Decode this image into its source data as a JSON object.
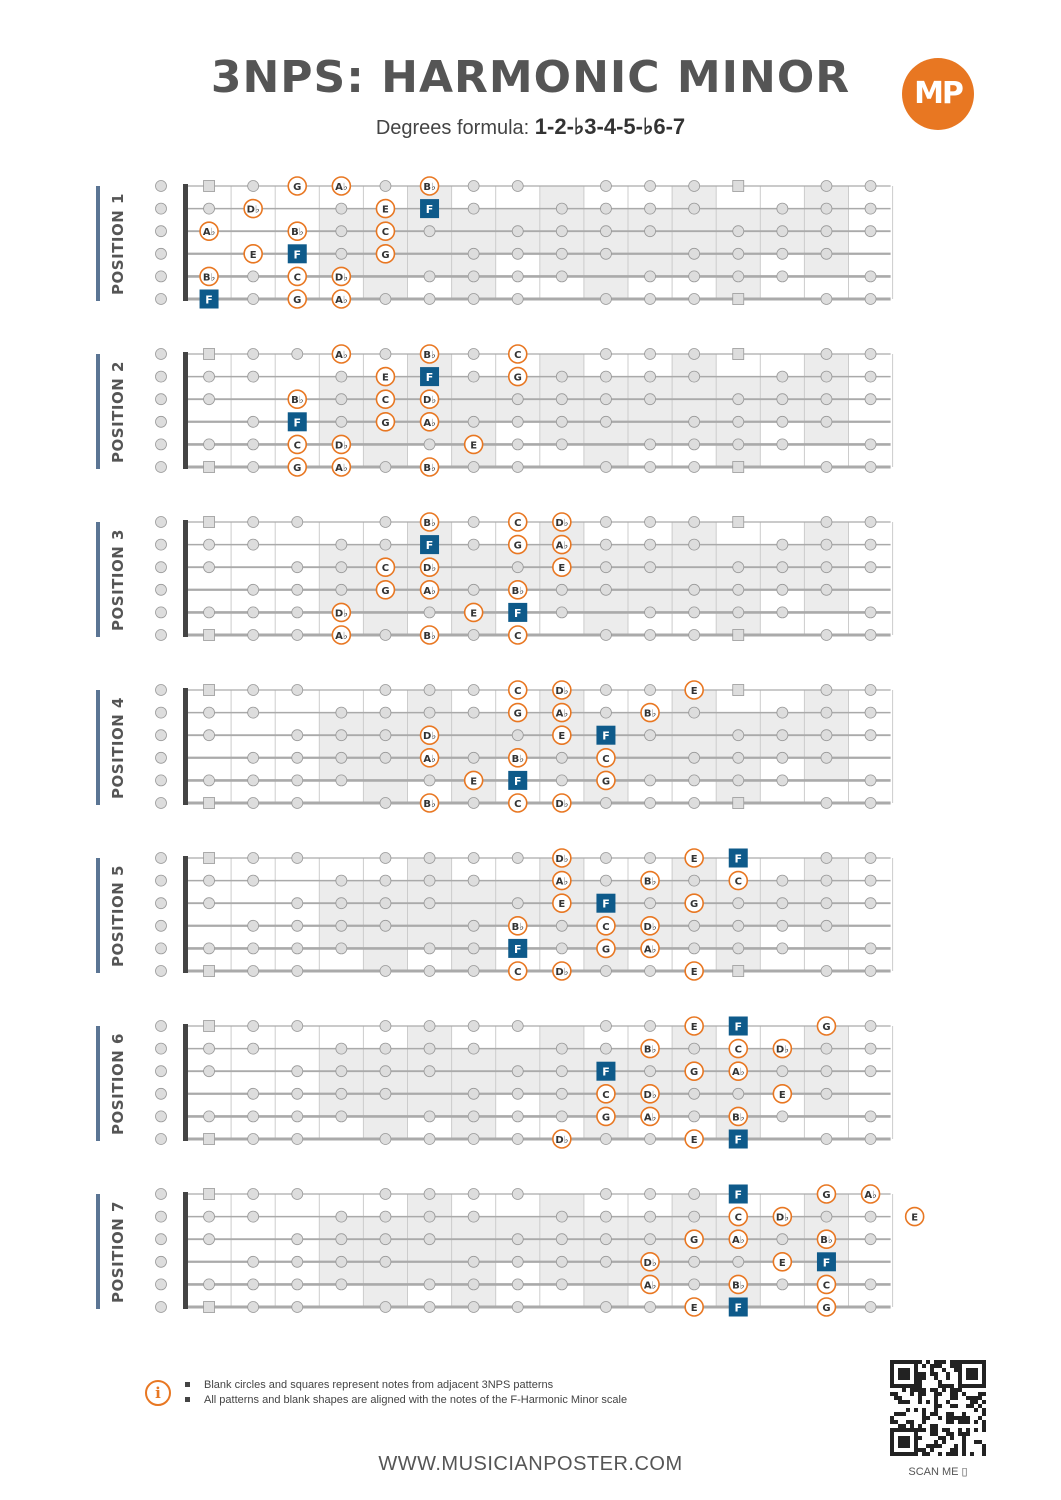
{
  "header": {
    "title": "3NPS: HARMONIC MINOR",
    "subtitle_prefix": "Degrees formula: ",
    "formula": "1-2-♭3-4-5-♭6-7",
    "logo_text": "MP"
  },
  "colors": {
    "accent": "#e87722",
    "root": "#0e5a8a",
    "gray_marker": "#dddddd",
    "label_bar": "#5b7594",
    "text": "#555555"
  },
  "fretboard": {
    "strings_top_to_bottom": [
      "E",
      "B",
      "G",
      "D",
      "A",
      "E"
    ],
    "frets": 16,
    "shaded_string_bands": {
      "4": [
        1,
        4
      ],
      "5": [
        1,
        5
      ],
      "6": [
        0,
        4
      ],
      "7": [
        1,
        5
      ],
      "8": [
        1,
        3
      ],
      "9": [
        0,
        4
      ],
      "10": [
        1,
        5
      ],
      "11": [
        1,
        4
      ],
      "12": [
        0,
        4
      ],
      "13": [
        1,
        5
      ],
      "14": [
        1,
        3
      ],
      "15": [
        0,
        4
      ]
    },
    "blank_square_frets": [
      0,
      1,
      5,
      6,
      7,
      8,
      9,
      10,
      11,
      13
    ]
  },
  "positions": [
    {
      "label": "POSITION 1",
      "notes": [
        {
          "string": 0,
          "fret": 3,
          "note": "G"
        },
        {
          "string": 0,
          "fret": 4,
          "note": "Ab"
        },
        {
          "string": 0,
          "fret": 6,
          "note": "Bb"
        },
        {
          "string": 1,
          "fret": 2,
          "note": "Db"
        },
        {
          "string": 1,
          "fret": 5,
          "note": "E"
        },
        {
          "string": 1,
          "fret": 6,
          "note": "F",
          "root": true
        },
        {
          "string": 2,
          "fret": 1,
          "note": "Ab"
        },
        {
          "string": 2,
          "fret": 3,
          "note": "Bb"
        },
        {
          "string": 2,
          "fret": 5,
          "note": "C"
        },
        {
          "string": 3,
          "fret": 2,
          "note": "E"
        },
        {
          "string": 3,
          "fret": 3,
          "note": "F",
          "root": true
        },
        {
          "string": 3,
          "fret": 5,
          "note": "G"
        },
        {
          "string": 4,
          "fret": 1,
          "note": "Bb"
        },
        {
          "string": 4,
          "fret": 3,
          "note": "C"
        },
        {
          "string": 4,
          "fret": 4,
          "note": "Db"
        },
        {
          "string": 5,
          "fret": 1,
          "note": "F",
          "root": true
        },
        {
          "string": 5,
          "fret": 3,
          "note": "G"
        },
        {
          "string": 5,
          "fret": 4,
          "note": "Ab"
        }
      ]
    },
    {
      "label": "POSITION 2",
      "notes": [
        {
          "string": 0,
          "fret": 4,
          "note": "Ab"
        },
        {
          "string": 0,
          "fret": 6,
          "note": "Bb"
        },
        {
          "string": 0,
          "fret": 8,
          "note": "C"
        },
        {
          "string": 1,
          "fret": 5,
          "note": "E"
        },
        {
          "string": 1,
          "fret": 6,
          "note": "F",
          "root": true
        },
        {
          "string": 1,
          "fret": 8,
          "note": "G"
        },
        {
          "string": 2,
          "fret": 3,
          "note": "Bb"
        },
        {
          "string": 2,
          "fret": 5,
          "note": "C"
        },
        {
          "string": 2,
          "fret": 6,
          "note": "Db"
        },
        {
          "string": 3,
          "fret": 3,
          "note": "F",
          "root": true
        },
        {
          "string": 3,
          "fret": 5,
          "note": "G"
        },
        {
          "string": 3,
          "fret": 6,
          "note": "Ab"
        },
        {
          "string": 4,
          "fret": 3,
          "note": "C"
        },
        {
          "string": 4,
          "fret": 4,
          "note": "Db"
        },
        {
          "string": 4,
          "fret": 7,
          "note": "E"
        },
        {
          "string": 5,
          "fret": 3,
          "note": "G"
        },
        {
          "string": 5,
          "fret": 4,
          "note": "Ab"
        },
        {
          "string": 5,
          "fret": 6,
          "note": "Bb"
        }
      ]
    },
    {
      "label": "POSITION 3",
      "notes": [
        {
          "string": 0,
          "fret": 6,
          "note": "Bb"
        },
        {
          "string": 0,
          "fret": 8,
          "note": "C"
        },
        {
          "string": 0,
          "fret": 9,
          "note": "Db"
        },
        {
          "string": 1,
          "fret": 6,
          "note": "F",
          "root": true
        },
        {
          "string": 1,
          "fret": 8,
          "note": "G"
        },
        {
          "string": 1,
          "fret": 9,
          "note": "Ab"
        },
        {
          "string": 2,
          "fret": 5,
          "note": "C"
        },
        {
          "string": 2,
          "fret": 6,
          "note": "Db"
        },
        {
          "string": 2,
          "fret": 9,
          "note": "E"
        },
        {
          "string": 3,
          "fret": 5,
          "note": "G"
        },
        {
          "string": 3,
          "fret": 6,
          "note": "Ab"
        },
        {
          "string": 3,
          "fret": 8,
          "note": "Bb"
        },
        {
          "string": 4,
          "fret": 4,
          "note": "Db"
        },
        {
          "string": 4,
          "fret": 7,
          "note": "E"
        },
        {
          "string": 4,
          "fret": 8,
          "note": "F",
          "root": true
        },
        {
          "string": 5,
          "fret": 4,
          "note": "Ab"
        },
        {
          "string": 5,
          "fret": 6,
          "note": "Bb"
        },
        {
          "string": 5,
          "fret": 8,
          "note": "C"
        }
      ]
    },
    {
      "label": "POSITION 4",
      "notes": [
        {
          "string": 0,
          "fret": 8,
          "note": "C"
        },
        {
          "string": 0,
          "fret": 9,
          "note": "Db"
        },
        {
          "string": 0,
          "fret": 12,
          "note": "E"
        },
        {
          "string": 1,
          "fret": 8,
          "note": "G"
        },
        {
          "string": 1,
          "fret": 9,
          "note": "Ab"
        },
        {
          "string": 1,
          "fret": 11,
          "note": "Bb"
        },
        {
          "string": 2,
          "fret": 6,
          "note": "Db"
        },
        {
          "string": 2,
          "fret": 9,
          "note": "E"
        },
        {
          "string": 2,
          "fret": 10,
          "note": "F",
          "root": true
        },
        {
          "string": 3,
          "fret": 6,
          "note": "Ab"
        },
        {
          "string": 3,
          "fret": 8,
          "note": "Bb"
        },
        {
          "string": 3,
          "fret": 10,
          "note": "C"
        },
        {
          "string": 4,
          "fret": 7,
          "note": "E"
        },
        {
          "string": 4,
          "fret": 8,
          "note": "F",
          "root": true
        },
        {
          "string": 4,
          "fret": 10,
          "note": "G"
        },
        {
          "string": 5,
          "fret": 6,
          "note": "Bb"
        },
        {
          "string": 5,
          "fret": 8,
          "note": "C"
        },
        {
          "string": 5,
          "fret": 9,
          "note": "Db"
        }
      ]
    },
    {
      "label": "POSITION 5",
      "notes": [
        {
          "string": 0,
          "fret": 9,
          "note": "Db"
        },
        {
          "string": 0,
          "fret": 12,
          "note": "E"
        },
        {
          "string": 0,
          "fret": 13,
          "note": "F",
          "root": true
        },
        {
          "string": 1,
          "fret": 9,
          "note": "Ab"
        },
        {
          "string": 1,
          "fret": 11,
          "note": "Bb"
        },
        {
          "string": 1,
          "fret": 13,
          "note": "C"
        },
        {
          "string": 2,
          "fret": 9,
          "note": "E"
        },
        {
          "string": 2,
          "fret": 10,
          "note": "F",
          "root": true
        },
        {
          "string": 2,
          "fret": 12,
          "note": "G"
        },
        {
          "string": 3,
          "fret": 8,
          "note": "Bb"
        },
        {
          "string": 3,
          "fret": 10,
          "note": "C"
        },
        {
          "string": 3,
          "fret": 11,
          "note": "Db"
        },
        {
          "string": 4,
          "fret": 8,
          "note": "F",
          "root": true
        },
        {
          "string": 4,
          "fret": 10,
          "note": "G"
        },
        {
          "string": 4,
          "fret": 11,
          "note": "Ab"
        },
        {
          "string": 5,
          "fret": 8,
          "note": "C"
        },
        {
          "string": 5,
          "fret": 9,
          "note": "Db"
        },
        {
          "string": 5,
          "fret": 12,
          "note": "E"
        }
      ]
    },
    {
      "label": "POSITION 6",
      "notes": [
        {
          "string": 0,
          "fret": 12,
          "note": "E"
        },
        {
          "string": 0,
          "fret": 13,
          "note": "F",
          "root": true
        },
        {
          "string": 0,
          "fret": 15,
          "note": "G"
        },
        {
          "string": 1,
          "fret": 11,
          "note": "Bb"
        },
        {
          "string": 1,
          "fret": 13,
          "note": "C"
        },
        {
          "string": 1,
          "fret": 14,
          "note": "Db"
        },
        {
          "string": 2,
          "fret": 10,
          "note": "F",
          "root": true
        },
        {
          "string": 2,
          "fret": 12,
          "note": "G"
        },
        {
          "string": 2,
          "fret": 13,
          "note": "Ab"
        },
        {
          "string": 3,
          "fret": 10,
          "note": "C"
        },
        {
          "string": 3,
          "fret": 11,
          "note": "Db"
        },
        {
          "string": 3,
          "fret": 14,
          "note": "E"
        },
        {
          "string": 4,
          "fret": 10,
          "note": "G"
        },
        {
          "string": 4,
          "fret": 11,
          "note": "Ab"
        },
        {
          "string": 4,
          "fret": 13,
          "note": "Bb"
        },
        {
          "string": 5,
          "fret": 9,
          "note": "Db"
        },
        {
          "string": 5,
          "fret": 12,
          "note": "E"
        },
        {
          "string": 5,
          "fret": 13,
          "note": "F",
          "root": true
        }
      ]
    },
    {
      "label": "POSITION 7",
      "notes": [
        {
          "string": 0,
          "fret": 13,
          "note": "F",
          "root": true
        },
        {
          "string": 0,
          "fret": 15,
          "note": "G"
        },
        {
          "string": 0,
          "fret": 16,
          "note": "Ab"
        },
        {
          "string": 1,
          "fret": 13,
          "note": "C"
        },
        {
          "string": 1,
          "fret": 14,
          "note": "Db"
        },
        {
          "string": 1,
          "fret": 17,
          "note": "E"
        },
        {
          "string": 2,
          "fret": 12,
          "note": "G"
        },
        {
          "string": 2,
          "fret": 13,
          "note": "Ab"
        },
        {
          "string": 2,
          "fret": 15,
          "note": "Bb"
        },
        {
          "string": 3,
          "fret": 11,
          "note": "Db"
        },
        {
          "string": 3,
          "fret": 14,
          "note": "E"
        },
        {
          "string": 3,
          "fret": 15,
          "note": "F",
          "root": true
        },
        {
          "string": 4,
          "fret": 11,
          "note": "Ab"
        },
        {
          "string": 4,
          "fret": 13,
          "note": "Bb"
        },
        {
          "string": 4,
          "fret": 15,
          "note": "C"
        },
        {
          "string": 5,
          "fret": 12,
          "note": "E"
        },
        {
          "string": 5,
          "fret": 13,
          "note": "F",
          "root": true
        },
        {
          "string": 5,
          "fret": 15,
          "note": "G"
        }
      ]
    }
  ],
  "notes_section": {
    "line1": "Blank circles and squares represent notes from adjacent 3NPS patterns",
    "line2": "All patterns and blank shapes are aligned with the notes of the F-Harmonic Minor scale"
  },
  "footer": {
    "website": "WWW.MUSICIANPOSTER.COM",
    "scan_me": "SCAN ME"
  }
}
